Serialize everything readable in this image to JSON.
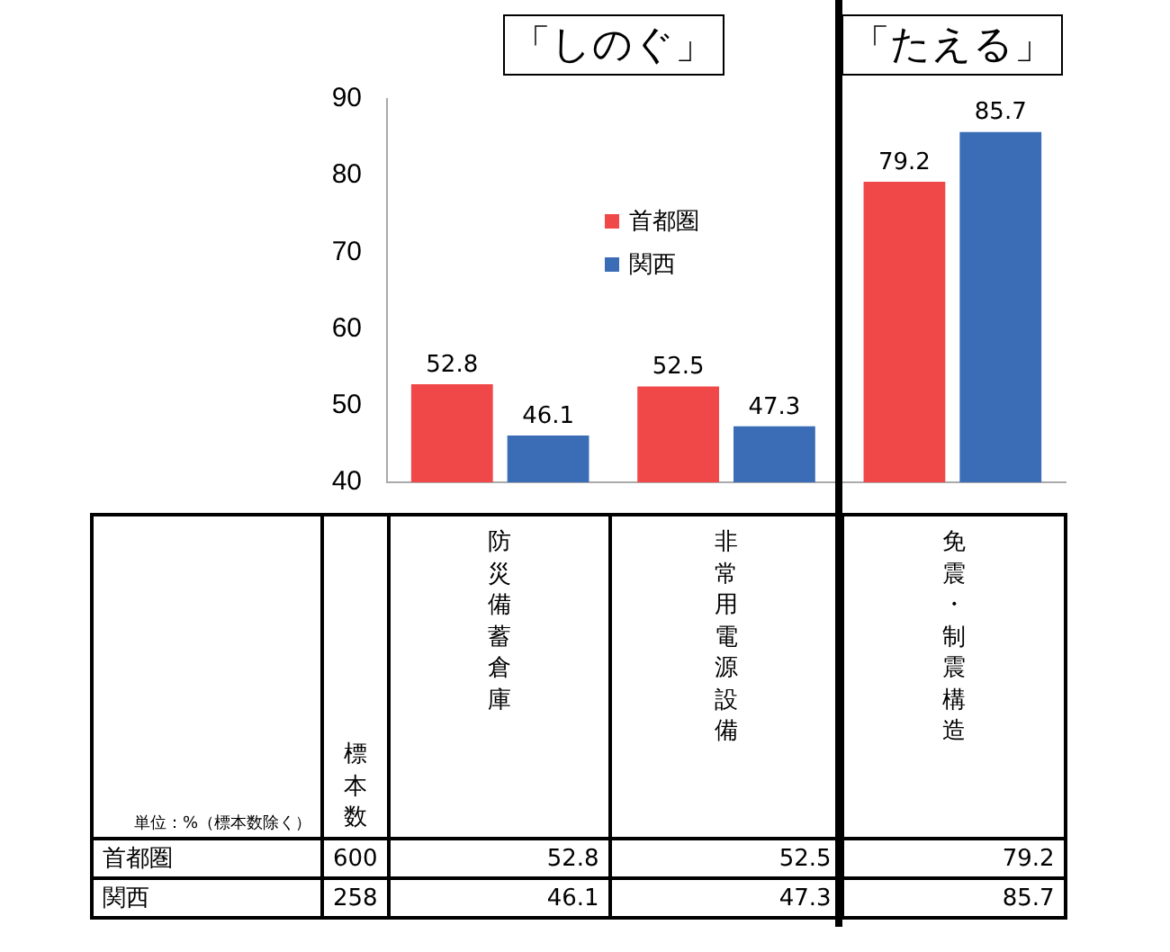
{
  "chart_data": {
    "type": "bar",
    "categories": [
      "防災備蓄倉庫",
      "非常用電源設備",
      "免震・制震構造"
    ],
    "series": [
      {
        "name": "首都圏",
        "color": "#f04848",
        "values": [
          52.8,
          52.5,
          79.2
        ]
      },
      {
        "name": "関西",
        "color": "#3a6db5",
        "values": [
          46.1,
          47.3,
          85.7
        ]
      }
    ],
    "ylim": [
      40,
      90
    ],
    "yticks": [
      40,
      50,
      60,
      70,
      80,
      90
    ],
    "grid": false,
    "legend": "center",
    "tick_labels": "y",
    "data_labels": true,
    "annotations": [
      "「しのぐ」",
      "「たえる」",
      "単位：%（標本数除く）",
      "標本数",
      "600",
      "258",
      "52.8",
      "52.5",
      "79.2",
      "46.1",
      "47.3",
      "85.7"
    ]
  }
}
